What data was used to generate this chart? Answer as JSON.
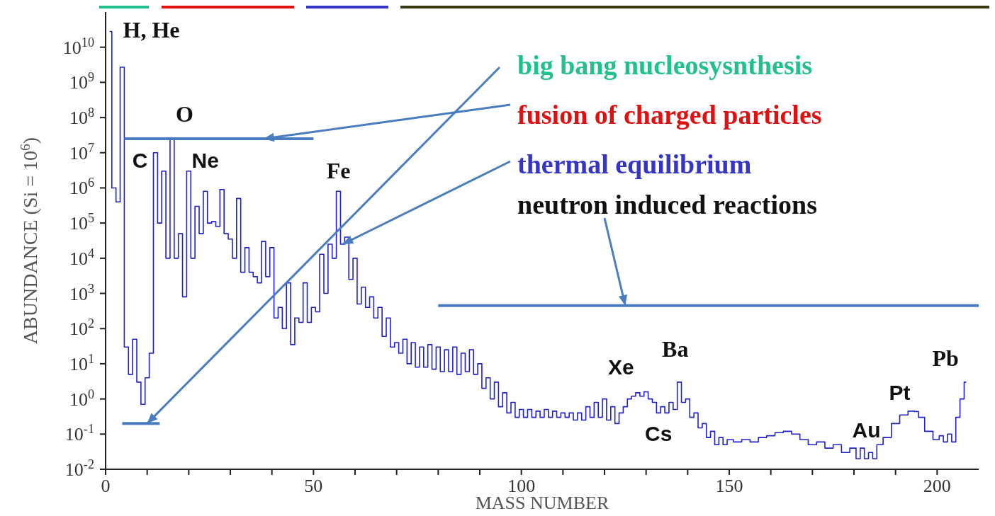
{
  "chart_data": {
    "type": "step",
    "xlabel": "MASS NUMBER",
    "ylabel": "ABUNDANCE  (Si = 10$^{6}$)",
    "x": [
      1,
      2,
      3,
      4,
      5,
      6,
      7,
      8,
      9,
      10,
      11,
      12,
      13,
      14,
      15,
      16,
      17,
      18,
      19,
      20,
      21,
      22,
      23,
      24,
      25,
      26,
      27,
      28,
      29,
      30,
      31,
      32,
      33,
      34,
      35,
      36,
      37,
      38,
      39,
      40,
      41,
      42,
      43,
      44,
      45,
      46,
      47,
      48,
      49,
      50,
      51,
      52,
      53,
      54,
      55,
      56,
      57,
      58,
      59,
      60,
      61,
      62,
      63,
      64,
      65,
      66,
      67,
      68,
      69,
      70,
      71,
      72,
      73,
      74,
      75,
      76,
      77,
      78,
      79,
      80,
      81,
      82,
      83,
      84,
      85,
      86,
      87,
      88,
      89,
      90,
      91,
      92,
      93,
      94,
      95,
      96,
      97,
      98,
      99,
      100,
      101,
      102,
      103,
      104,
      105,
      106,
      107,
      108,
      109,
      110,
      111,
      112,
      113,
      114,
      115,
      116,
      117,
      118,
      119,
      120,
      121,
      122,
      123,
      124,
      125,
      126,
      127,
      128,
      129,
      130,
      131,
      132,
      133,
      134,
      135,
      136,
      137,
      138,
      139,
      140,
      141,
      142,
      143,
      144,
      145,
      146,
      147,
      148,
      149,
      150,
      152,
      154,
      156,
      158,
      160,
      162,
      164,
      166,
      168,
      170,
      172,
      174,
      176,
      178,
      180,
      181,
      182,
      183,
      184,
      185,
      186,
      188,
      190,
      192,
      194,
      195,
      196,
      198,
      200,
      201,
      202,
      203,
      204,
      205,
      206,
      207
    ],
    "values": [
      28000000000.0,
      1000000.0,
      400000.0,
      2700000000.0,
      30,
      5,
      50,
      3,
      0.7,
      4,
      20,
      10000000.0,
      100000.0,
      3000000.0,
      10000.0,
      24000000.0,
      10000.0,
      50000.0,
      800,
      3000000.0,
      10000.0,
      300000.0,
      50000.0,
      800000.0,
      100000.0,
      110000.0,
      80000.0,
      900000.0,
      50000.0,
      35000.0,
      10000.0,
      500000.0,
      4000,
      20000.0,
      4000,
      3000,
      2000,
      30000.0,
      3000,
      20000.0,
      200,
      400,
      100,
      2000,
      35,
      200,
      150,
      2000,
      150,
      400,
      300,
      13000.0,
      1000,
      25000.0,
      10000.0,
      800000.0,
      25000.0,
      40000.0,
      2500,
      10000.0,
      500,
      1500,
      400,
      800,
      200,
      400,
      60,
      200,
      30,
      40,
      20,
      50,
      10,
      40,
      8,
      30,
      8,
      35,
      7,
      30,
      6,
      25,
      6,
      30,
      5,
      20,
      6,
      25,
      5,
      10,
      2,
      4,
      1,
      3,
      0.6,
      1.5,
      0.4,
      0.8,
      0.3,
      0.5,
      0.3,
      0.5,
      0.3,
      0.45,
      0.3,
      0.5,
      0.3,
      0.45,
      0.3,
      0.4,
      0.3,
      0.4,
      0.25,
      0.4,
      0.25,
      0.6,
      0.3,
      0.8,
      0.3,
      1,
      0.25,
      0.6,
      0.2,
      0.4,
      0.6,
      1,
      1.2,
      1.5,
      1.2,
      1.6,
      1,
      0.8,
      0.4,
      0.6,
      0.4,
      0.8,
      0.5,
      3,
      0.8,
      1,
      0.3,
      0.4,
      0.15,
      0.2,
      0.08,
      0.12,
      0.05,
      0.08,
      0.05,
      0.07,
      0.06,
      0.07,
      0.06,
      0.08,
      0.09,
      0.11,
      0.12,
      0.1,
      0.07,
      0.05,
      0.06,
      0.04,
      0.05,
      0.03,
      0.04,
      0.02,
      0.04,
      0.02,
      0.03,
      0.02,
      0.05,
      0.08,
      0.2,
      0.35,
      0.45,
      0.44,
      0.3,
      0.12,
      0.07,
      0.09,
      0.06,
      0.1,
      0.06,
      0.3,
      1,
      3
    ],
    "color": "#2020d0",
    "series": [
      {
        "x": [
          4,
          13
        ],
        "values": [
          0.2,
          0.2
        ],
        "color": "#4a7cc0"
      },
      {
        "x": [
          4.5,
          50
        ],
        "values": [
          25000000.0,
          25000000.0
        ],
        "color": "#4a7cc0"
      },
      {
        "x": [
          80,
          210
        ],
        "values": [
          450,
          450
        ],
        "color": "#4a7cc0"
      }
    ],
    "log": true,
    "xlim": [
      0,
      210
    ],
    "xticks": [
      0,
      {
        "value": 10,
        "label": null
      },
      {
        "value": 20,
        "label": null
      },
      {
        "value": 30,
        "label": null
      },
      {
        "value": 40,
        "label": null
      },
      50,
      {
        "value": 60,
        "label": null
      },
      {
        "value": 70,
        "label": null
      },
      {
        "value": 80,
        "label": null
      },
      {
        "value": 90,
        "label": null
      },
      100,
      {
        "value": 110,
        "label": null
      },
      {
        "value": 120,
        "label": null
      },
      {
        "value": 130,
        "label": null
      },
      {
        "value": 140,
        "label": null
      },
      150,
      {
        "value": 160,
        "label": null
      },
      {
        "value": 170,
        "label": null
      },
      {
        "value": 180,
        "label": null
      },
      {
        "value": 190,
        "label": null
      },
      200
    ],
    "ylim": [
      0.01,
      100000000000.0
    ],
    "yticks": [
      {
        "value": 0.01,
        "label": "10$^{-2}$"
      },
      {
        "value": 0.1,
        "label": "10$^{-1}$"
      },
      {
        "value": 1,
        "label": "10$^{0}$"
      },
      {
        "value": 10,
        "label": "10$^{1}$"
      },
      {
        "value": 100,
        "label": "10$^{2}$"
      },
      {
        "value": 1000,
        "label": "10$^{3}$"
      },
      {
        "value": 10000,
        "label": "10$^{4}$"
      },
      {
        "value": 100000,
        "label": "10$^{5}$"
      },
      {
        "value": 1000000,
        "label": "10$^{6}$"
      },
      {
        "value": 10000000,
        "label": "10$^{7}$"
      },
      {
        "value": 100000000,
        "label": "10$^{8}$"
      },
      {
        "value": 1000000000,
        "label": "10$^{9}$"
      },
      {
        "value": 10000000000,
        "label": "10$^{10}$"
      }
    ],
    "annotations": [
      "H, He",
      "O",
      "C",
      "Ne",
      "Fe",
      "Xe",
      "Ba",
      "Cs",
      "Au",
      "Pt",
      "Pb",
      {
        "text": "big bang nucleosysnthesis",
        "x": 10,
        "y": 0.2
      },
      {
        "text": "fusion of charged particles",
        "x": 38,
        "y": 25000000.0
      },
      {
        "text": "thermal equilibrium",
        "x": 57,
        "y": 25000.0
      },
      {
        "text": "neutron induced reactions",
        "x": 125,
        "y": 450
      }
    ]
  }
}
